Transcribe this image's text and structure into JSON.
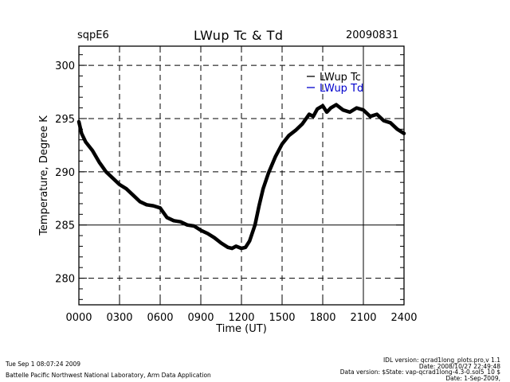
{
  "header": {
    "site": "sqpE6",
    "title": "LWup Tc & Td",
    "date": "20090831"
  },
  "colors": {
    "series_tc": "#000000",
    "series_td": "#0000cc"
  },
  "chart_data": {
    "type": "line",
    "title": "LWup Tc & Td",
    "xlabel": "Time (UT)",
    "ylabel": "Temperature, Degree K",
    "xlim": [
      0,
      24
    ],
    "ylim": [
      277.5,
      301.8
    ],
    "x_tick_labels": [
      "0000",
      "0300",
      "0600",
      "0900",
      "1200",
      "1500",
      "1800",
      "2100",
      "2400"
    ],
    "x_tick_values": [
      0,
      3,
      6,
      9,
      12,
      15,
      18,
      21,
      24
    ],
    "y_tick_labels": [
      "280",
      "285",
      "290",
      "295",
      "300"
    ],
    "y_tick_values": [
      280,
      285,
      290,
      295,
      300
    ],
    "grid": "dashed",
    "legend": "top-right",
    "series": [
      {
        "name": "LWup Tc",
        "x": [
          0.0,
          0.2,
          0.5,
          1.0,
          1.5,
          2.0,
          2.5,
          3.0,
          3.5,
          4.0,
          4.5,
          5.0,
          5.5,
          6.0,
          6.5,
          7.0,
          7.5,
          8.0,
          8.5,
          9.0,
          9.5,
          10.0,
          10.5,
          11.0,
          11.3,
          11.6,
          12.0,
          12.3,
          12.6,
          13.0,
          13.3,
          13.6,
          14.0,
          14.5,
          15.0,
          15.5,
          16.0,
          16.5,
          17.0,
          17.3,
          17.6,
          18.0,
          18.3,
          18.6,
          19.0,
          19.5,
          20.0,
          20.5,
          21.0,
          21.5,
          22.0,
          22.5,
          23.0,
          23.5,
          24.0
        ],
        "y": [
          294.7,
          293.6,
          292.8,
          292.0,
          290.9,
          290.0,
          289.4,
          288.8,
          288.4,
          287.8,
          287.2,
          286.9,
          286.8,
          286.6,
          285.7,
          285.4,
          285.3,
          285.0,
          284.9,
          284.5,
          284.2,
          283.8,
          283.3,
          282.9,
          282.8,
          283.0,
          282.8,
          282.9,
          283.5,
          285.0,
          286.8,
          288.4,
          289.9,
          291.4,
          292.6,
          293.4,
          293.9,
          294.5,
          295.4,
          295.2,
          295.9,
          296.2,
          295.6,
          296.0,
          296.3,
          295.8,
          295.6,
          296.0,
          295.8,
          295.2,
          295.4,
          294.8,
          294.6,
          294.0,
          293.6
        ]
      },
      {
        "name": "LWup Td",
        "x": [],
        "y": []
      }
    ]
  },
  "footer": {
    "timestamp": "Tue Sep  1 08:07:24 2009",
    "organization": "Battelle Pacific Northwest National Laboratory, Arm Data Application",
    "idl_version": "IDL version: qcrad1long_plots.pro,v 1.1",
    "idl_date": "Date: 2008/10/27 22:49:48",
    "data_version": "Data version: $State: vap-qcrad1long-4.3-0.sol5_10 $",
    "data_date": "Date: 1-Sep-2009,"
  }
}
